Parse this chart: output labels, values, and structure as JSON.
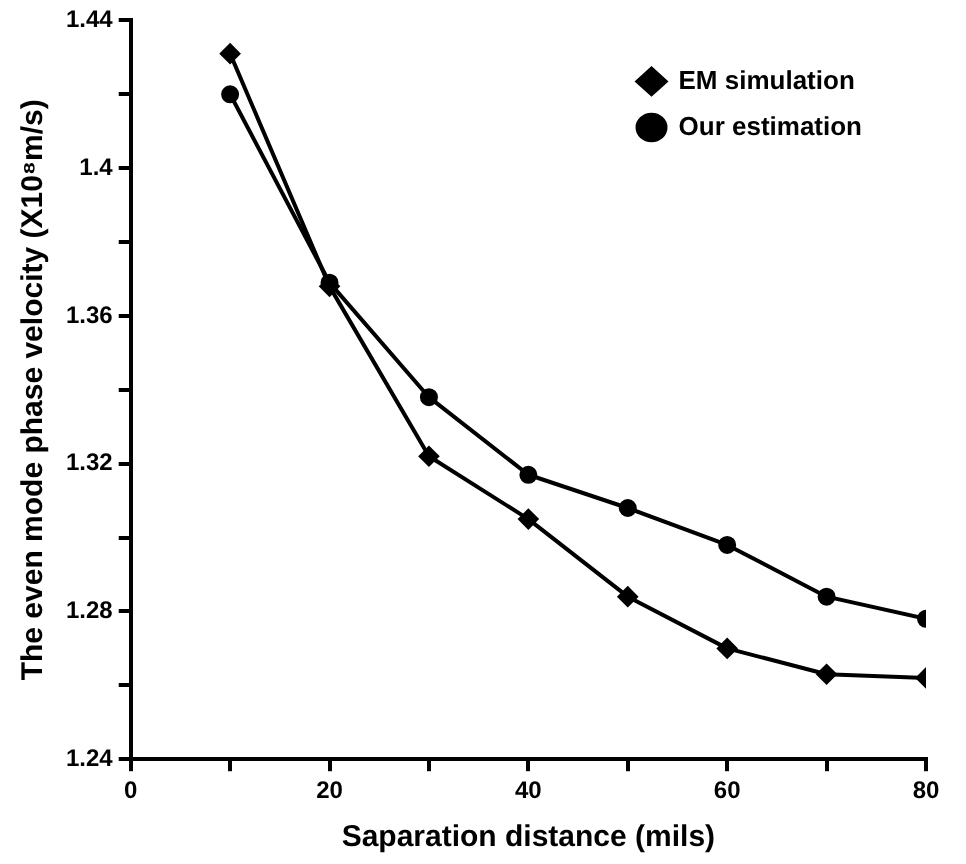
{
  "chart_data": {
    "type": "line",
    "xlabel": "Saparation distance (mils)",
    "ylabel": "The even mode phase velocity (X10⁸m/s)",
    "x": [
      10,
      20,
      30,
      40,
      50,
      60,
      70,
      80
    ],
    "series": [
      {
        "name": "EM simulation",
        "color": "#000000",
        "marker": "diamond",
        "values": [
          1.431,
          1.368,
          1.322,
          1.305,
          1.284,
          1.27,
          1.263,
          1.262
        ]
      },
      {
        "name": "Our estimation",
        "color": "#000000",
        "marker": "circle",
        "values": [
          1.42,
          1.369,
          1.338,
          1.317,
          1.308,
          1.298,
          1.284,
          1.278
        ]
      }
    ],
    "xlim": [
      0,
      80
    ],
    "xticks": [
      0,
      {
        "value": 10,
        "label": null
      },
      20,
      {
        "value": 30,
        "label": null
      },
      40,
      {
        "value": 50,
        "label": null
      },
      60,
      {
        "value": 70,
        "label": null
      },
      80
    ],
    "ylim": [
      1.24,
      1.44
    ],
    "yticks": [
      1.24,
      {
        "value": 1.26,
        "label": null
      },
      1.28,
      {
        "value": 1.3,
        "label": null
      },
      1.32,
      {
        "value": 1.34,
        "label": null
      },
      1.36,
      {
        "value": 1.38,
        "label": null
      },
      1.4,
      {
        "value": 1.42,
        "label": null
      },
      1.44
    ],
    "grid": false,
    "legend": "top right",
    "line_style": "solid"
  }
}
